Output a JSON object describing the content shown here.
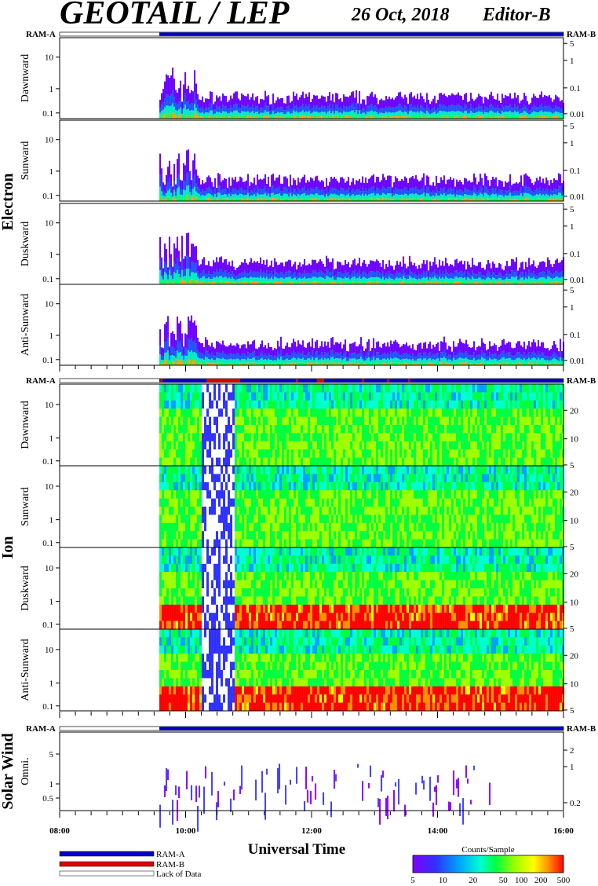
{
  "header": {
    "title": "GEOTAIL / LEP",
    "date": "26 Oct, 2018",
    "editor": "Editor-B"
  },
  "ram_labels": {
    "a": "RAM-A",
    "b": "RAM-B"
  },
  "groups": [
    {
      "name": "Electron",
      "panels": [
        "Dawnward",
        "Sunward",
        "Duskward",
        "Anti-Sunward"
      ]
    },
    {
      "name": "Ion",
      "panels": [
        "Dawnward",
        "Sunward",
        "Duskward",
        "Anti-Sunward"
      ]
    },
    {
      "name": "Solar Wind",
      "panels": [
        "Omni."
      ]
    }
  ],
  "colors": {
    "ram_a": "#0000cc",
    "ram_b": "#dd0000",
    "lack": "#ffffff",
    "colorbar": [
      "#8000ff",
      "#3030ff",
      "#00a0ff",
      "#00ffd0",
      "#00ff40",
      "#a0ff00",
      "#ffff00",
      "#ff9000",
      "#ff0000"
    ]
  },
  "chart_data": {
    "type": "heatmap",
    "xlabel": "Universal Time",
    "x_ticks": [
      "08:00",
      "10:00",
      "12:00",
      "14:00",
      "16:00"
    ],
    "data_start": "09:35",
    "left_axis": {
      "ticks_main": [
        "10",
        "1",
        "0.1"
      ],
      "ticks_electron": [
        "10",
        "1",
        "0.1"
      ],
      "ticks_solar": [
        "5",
        "1",
        "0.5"
      ]
    },
    "right_axis": {
      "electron": [
        "5",
        "1",
        "0.1",
        "0.01"
      ],
      "ion": [
        "20",
        "10",
        "5"
      ],
      "solar": [
        "2",
        "1",
        "0.2"
      ]
    },
    "colorbar": {
      "title": "Counts/Sample",
      "ticks": [
        "5",
        "10",
        "20",
        "50",
        "100",
        "200",
        "500"
      ]
    },
    "legend": [
      {
        "label": "RAM-A",
        "color": "#0000cc"
      },
      {
        "label": "RAM-B",
        "color": "#dd0000"
      },
      {
        "label": "Lack of Data",
        "color": "#ffffff"
      }
    ]
  }
}
